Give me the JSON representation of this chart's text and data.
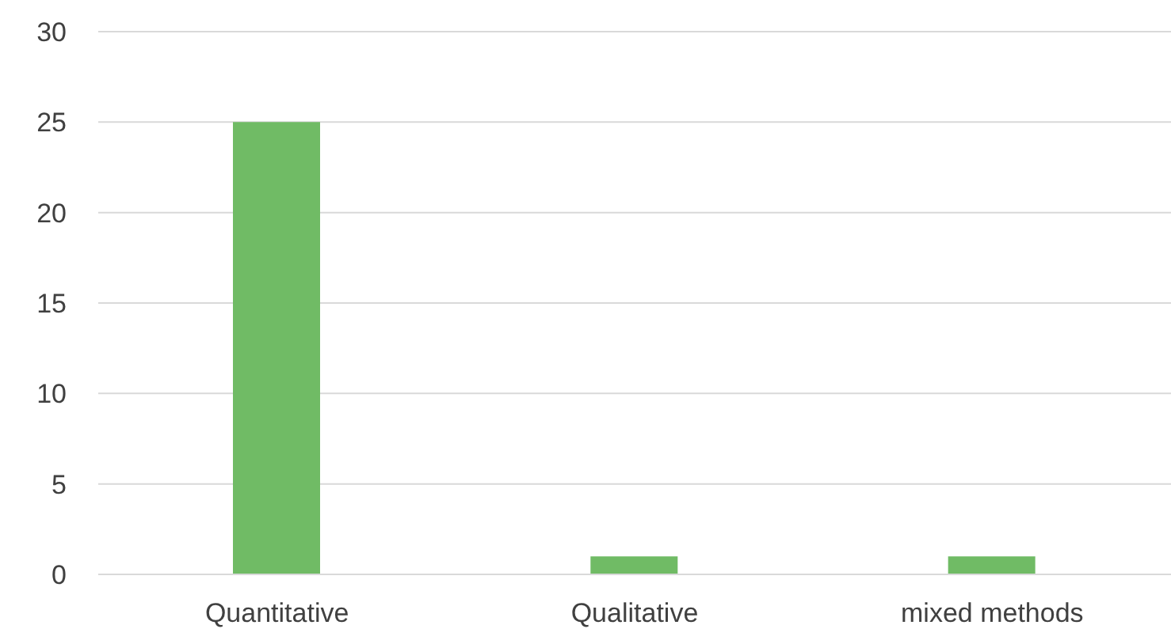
{
  "chart_data": {
    "type": "bar",
    "categories": [
      "Quantitative",
      "Qualitative",
      "mixed methods"
    ],
    "values": [
      25,
      1,
      1
    ],
    "color": "#70bb65",
    "ylim": [
      0,
      30
    ],
    "yticks": [
      0,
      5,
      10,
      15,
      20,
      25,
      30
    ],
    "grid": "y"
  }
}
